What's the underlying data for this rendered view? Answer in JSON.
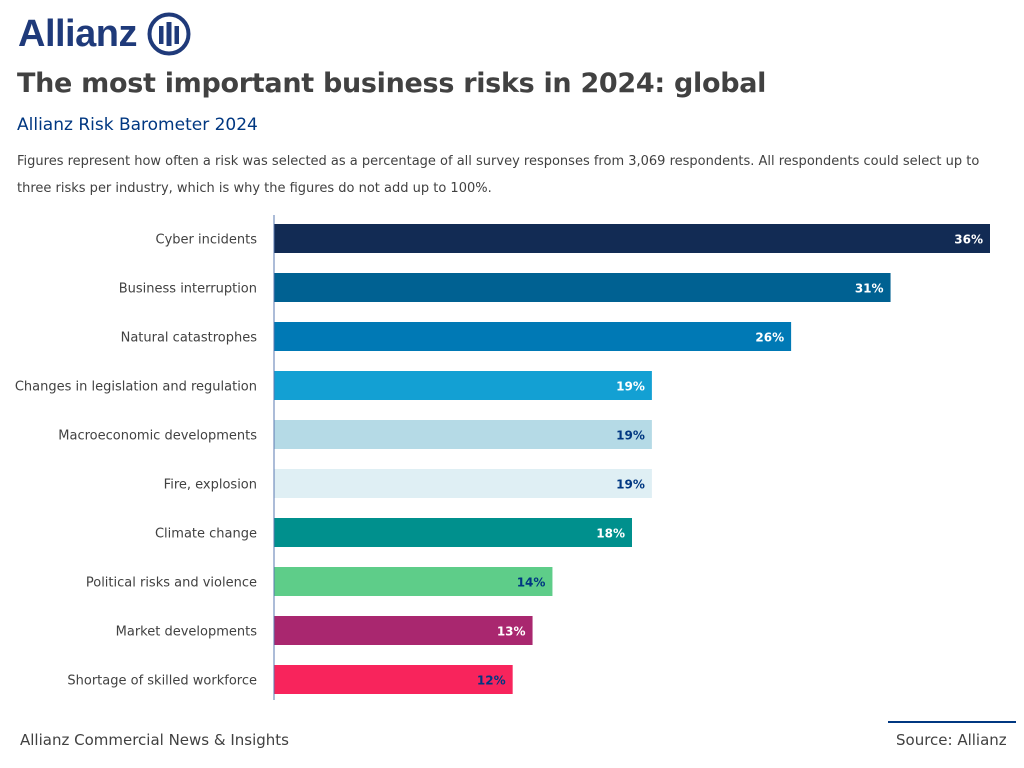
{
  "brand": {
    "logo_text": "Allianz",
    "color": "#1f3a7a"
  },
  "title": "The most important business risks in 2024: global",
  "subtitle": "Allianz Risk Barometer 2024",
  "description": "Figures represent how often a risk was selected as a percentage of all survey responses from 3,069 respondents. All respondents could select up to three risks per industry, which is why the figures do not add up to 100%.",
  "footer": {
    "left": "Allianz Commercial News & Insights",
    "right": "Source: Allianz"
  },
  "chart_data": {
    "type": "bar",
    "orientation": "horizontal",
    "categories": [
      "Cyber incidents",
      "Business interruption",
      "Natural catastrophes",
      "Changes in legislation and regulation",
      "Macroeconomic developments",
      "Fire, explosion",
      "Climate change",
      "Political risks and violence",
      "Market developments",
      "Shortage of skilled workforce"
    ],
    "values": [
      36,
      31,
      26,
      19,
      19,
      19,
      18,
      14,
      13,
      12
    ],
    "labels": [
      "36%",
      "31%",
      "26%",
      "19%",
      "19%",
      "19%",
      "18%",
      "14%",
      "13%",
      "12%"
    ],
    "colors": [
      "#122b54",
      "#006192",
      "#0079b5",
      "#13a0d3",
      "#b5dae6",
      "#dfeff4",
      "#00908d",
      "#5ecd89",
      "#a9276f",
      "#f8245c"
    ],
    "label_colors": [
      "#ffffff",
      "#ffffff",
      "#ffffff",
      "#ffffff",
      "#003781",
      "#003781",
      "#ffffff",
      "#003781",
      "#ffffff",
      "#003781"
    ],
    "xlim": [
      0,
      36
    ],
    "grid": false
  }
}
